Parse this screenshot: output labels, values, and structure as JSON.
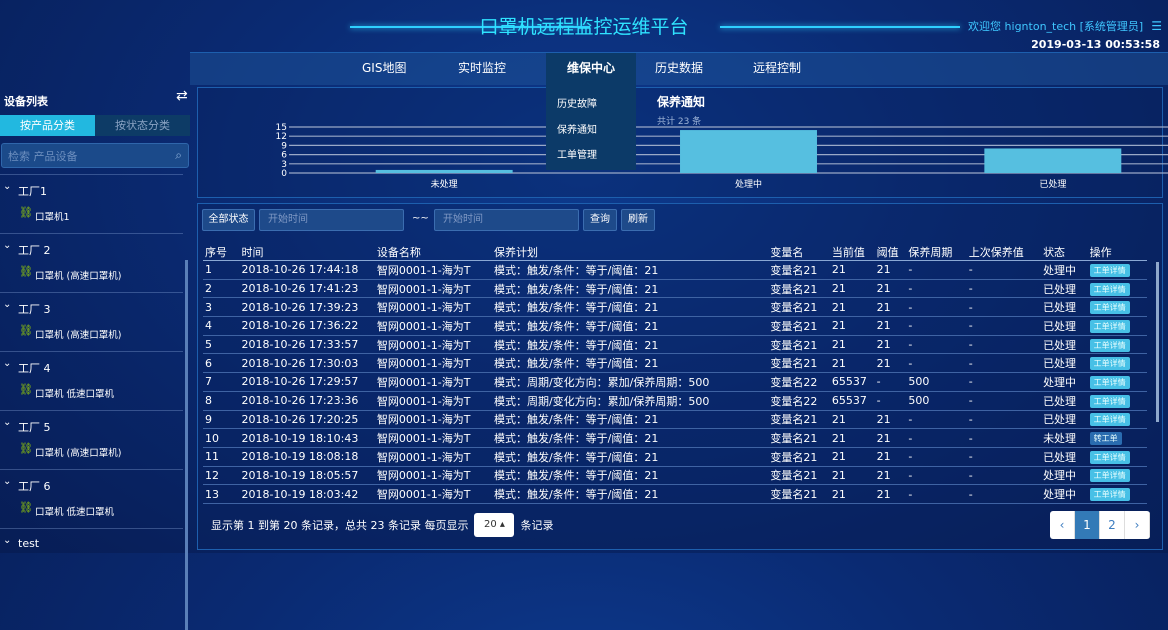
{
  "header": {
    "title": "口罩机远程监控运维平台",
    "welcome": "欢迎您  hignton_tech [系统管理员]",
    "datetime": "2019-03-13 00:53:58"
  },
  "nav": {
    "items": [
      "GIS地图",
      "实时监控",
      "维保中心",
      "历史数据",
      "远程控制"
    ],
    "active": "维保中心",
    "dropdown": [
      "历史故障",
      "保养通知",
      "工单管理"
    ]
  },
  "sidebar": {
    "title": "设备列表",
    "tabs": [
      "按产品分类",
      "按状态分类"
    ],
    "search_placeholder": "检索 产品设备",
    "groups": [
      {
        "name": "工厂1",
        "device": "口罩机1"
      },
      {
        "name": "工厂 2",
        "device": "口罩机 (高速口罩机)"
      },
      {
        "name": "工厂 3",
        "device": "口罩机 (高速口罩机)"
      },
      {
        "name": "工厂 4",
        "device": "口罩机 低速口罩机"
      },
      {
        "name": "工厂 5",
        "device": "口罩机 (高速口罩机)"
      },
      {
        "name": "工厂 6",
        "device": "口罩机 低速口罩机"
      },
      {
        "name": "test",
        "device": ""
      }
    ]
  },
  "chart_data": {
    "type": "bar",
    "title": "保养通知",
    "subtitle": "共计 23 条",
    "categories": [
      "未处理",
      "处理中",
      "已处理"
    ],
    "values": [
      1,
      14,
      8
    ],
    "ylim": [
      0,
      15
    ],
    "yticks": [
      0,
      3,
      6,
      9,
      12,
      15
    ],
    "grid": true,
    "color": "#56bfe0"
  },
  "filter": {
    "status_label": "全部状态",
    "start_placeholder": "开始时间",
    "sep": "~~",
    "end_placeholder": "开始时间",
    "query": "查询",
    "refresh": "刷新"
  },
  "table": {
    "headers": [
      "序号",
      "时间",
      "设备名称",
      "保养计划",
      "变量名",
      "当前值",
      "阈值",
      "保养周期",
      "上次保养值",
      "状态",
      "操作"
    ],
    "rows": [
      [
        "1",
        "2018-10-26 17:44:18",
        "智网0001-1-海为T",
        "模式：触发/条件：等于/阈值：21",
        "变量名21",
        "21",
        "21",
        "-",
        "-",
        "处理中",
        "工单详情"
      ],
      [
        "2",
        "2018-10-26 17:41:23",
        "智网0001-1-海为T",
        "模式：触发/条件：等于/阈值：21",
        "变量名21",
        "21",
        "21",
        "-",
        "-",
        "已处理",
        "工单详情"
      ],
      [
        "3",
        "2018-10-26 17:39:23",
        "智网0001-1-海为T",
        "模式：触发/条件：等于/阈值：21",
        "变量名21",
        "21",
        "21",
        "-",
        "-",
        "已处理",
        "工单详情"
      ],
      [
        "4",
        "2018-10-26 17:36:22",
        "智网0001-1-海为T",
        "模式：触发/条件：等于/阈值：21",
        "变量名21",
        "21",
        "21",
        "-",
        "-",
        "已处理",
        "工单详情"
      ],
      [
        "5",
        "2018-10-26 17:33:57",
        "智网0001-1-海为T",
        "模式：触发/条件：等于/阈值：21",
        "变量名21",
        "21",
        "21",
        "-",
        "-",
        "已处理",
        "工单详情"
      ],
      [
        "6",
        "2018-10-26 17:30:03",
        "智网0001-1-海为T",
        "模式：触发/条件：等于/阈值：21",
        "变量名21",
        "21",
        "21",
        "-",
        "-",
        "已处理",
        "工单详情"
      ],
      [
        "7",
        "2018-10-26 17:29:57",
        "智网0001-1-海为T",
        "模式：周期/变化方向：累加/保养周期：500",
        "变量名22",
        "65537",
        "-",
        "500",
        "-",
        "处理中",
        "工单详情"
      ],
      [
        "8",
        "2018-10-26 17:23:36",
        "智网0001-1-海为T",
        "模式：周期/变化方向：累加/保养周期：500",
        "变量名22",
        "65537",
        "-",
        "500",
        "-",
        "已处理",
        "工单详情"
      ],
      [
        "9",
        "2018-10-26 17:20:25",
        "智网0001-1-海为T",
        "模式：触发/条件：等于/阈值：21",
        "变量名21",
        "21",
        "21",
        "-",
        "-",
        "已处理",
        "工单详情"
      ],
      [
        "10",
        "2018-10-19 18:10:43",
        "智网0001-1-海为T",
        "模式：触发/条件：等于/阈值：21",
        "变量名21",
        "21",
        "21",
        "-",
        "-",
        "未处理",
        "转工单"
      ],
      [
        "11",
        "2018-10-19 18:08:18",
        "智网0001-1-海为T",
        "模式：触发/条件：等于/阈值：21",
        "变量名21",
        "21",
        "21",
        "-",
        "-",
        "已处理",
        "工单详情"
      ],
      [
        "12",
        "2018-10-19 18:05:57",
        "智网0001-1-海为T",
        "模式：触发/条件：等于/阈值：21",
        "变量名21",
        "21",
        "21",
        "-",
        "-",
        "处理中",
        "工单详情"
      ],
      [
        "13",
        "2018-10-19 18:03:42",
        "智网0001-1-海为T",
        "模式：触发/条件：等于/阈值：21",
        "变量名21",
        "21",
        "21",
        "-",
        "-",
        "处理中",
        "工单详情"
      ]
    ]
  },
  "pagination": {
    "summary": "显示第 1 到第 20 条记录，总共 23 条记录 每页显示",
    "page_size": "20 ▴",
    "suffix": "条记录",
    "prev": "‹",
    "pages": [
      "1",
      "2"
    ],
    "current": "1",
    "next": "›"
  }
}
